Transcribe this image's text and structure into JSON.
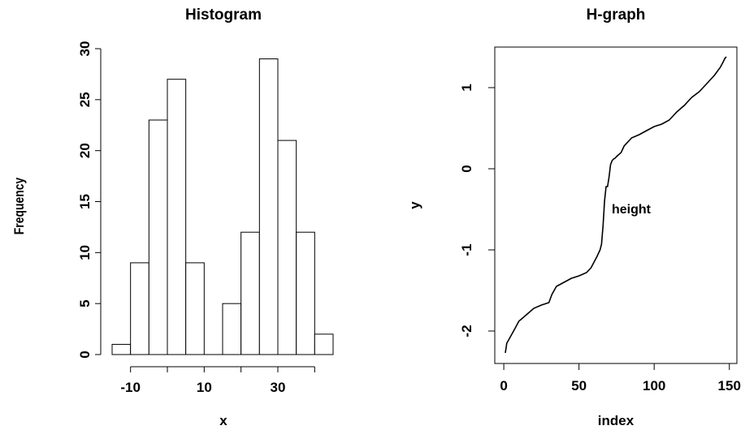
{
  "chart_data": [
    {
      "type": "bar",
      "title": "Histogram",
      "xlabel": "x",
      "ylabel": "Frequency",
      "bin_edges": [
        -15,
        -10,
        -5,
        0,
        5,
        10,
        15,
        20,
        25,
        30,
        35,
        40,
        45
      ],
      "values": [
        1,
        9,
        23,
        27,
        9,
        0,
        5,
        12,
        29,
        21,
        12,
        2
      ],
      "xticks": [
        -10,
        10,
        30
      ],
      "yticks": [
        0,
        5,
        10,
        15,
        20,
        25,
        30
      ],
      "xlim": [
        -15,
        45
      ],
      "ylim": [
        0,
        30
      ]
    },
    {
      "type": "line",
      "title": "H-graph",
      "xlabel": "index",
      "ylabel": "y",
      "annotation": "height",
      "xticks": [
        0,
        50,
        100,
        150
      ],
      "yticks": [
        -2,
        -1,
        0,
        1
      ],
      "xlim": [
        0,
        150
      ],
      "ylim": [
        -2.4,
        1.5
      ],
      "x": [
        1,
        2,
        5,
        8,
        10,
        15,
        20,
        25,
        30,
        32,
        35,
        40,
        45,
        50,
        55,
        58,
        60,
        62,
        64,
        65,
        66,
        67,
        68,
        69,
        70,
        71,
        72,
        73,
        74,
        75,
        78,
        80,
        85,
        90,
        95,
        100,
        105,
        110,
        115,
        120,
        125,
        130,
        135,
        140,
        144,
        146,
        147,
        148
      ],
      "y": [
        -2.27,
        -2.15,
        -2.05,
        -1.95,
        -1.88,
        -1.8,
        -1.72,
        -1.68,
        -1.65,
        -1.55,
        -1.45,
        -1.4,
        -1.35,
        -1.32,
        -1.28,
        -1.22,
        -1.15,
        -1.08,
        -1.0,
        -0.93,
        -0.7,
        -0.4,
        -0.22,
        -0.22,
        -0.1,
        0.05,
        0.1,
        0.12,
        0.13,
        0.15,
        0.2,
        0.28,
        0.38,
        0.42,
        0.47,
        0.52,
        0.55,
        0.6,
        0.7,
        0.78,
        0.88,
        0.95,
        1.05,
        1.15,
        1.25,
        1.32,
        1.36,
        1.38
      ]
    }
  ]
}
